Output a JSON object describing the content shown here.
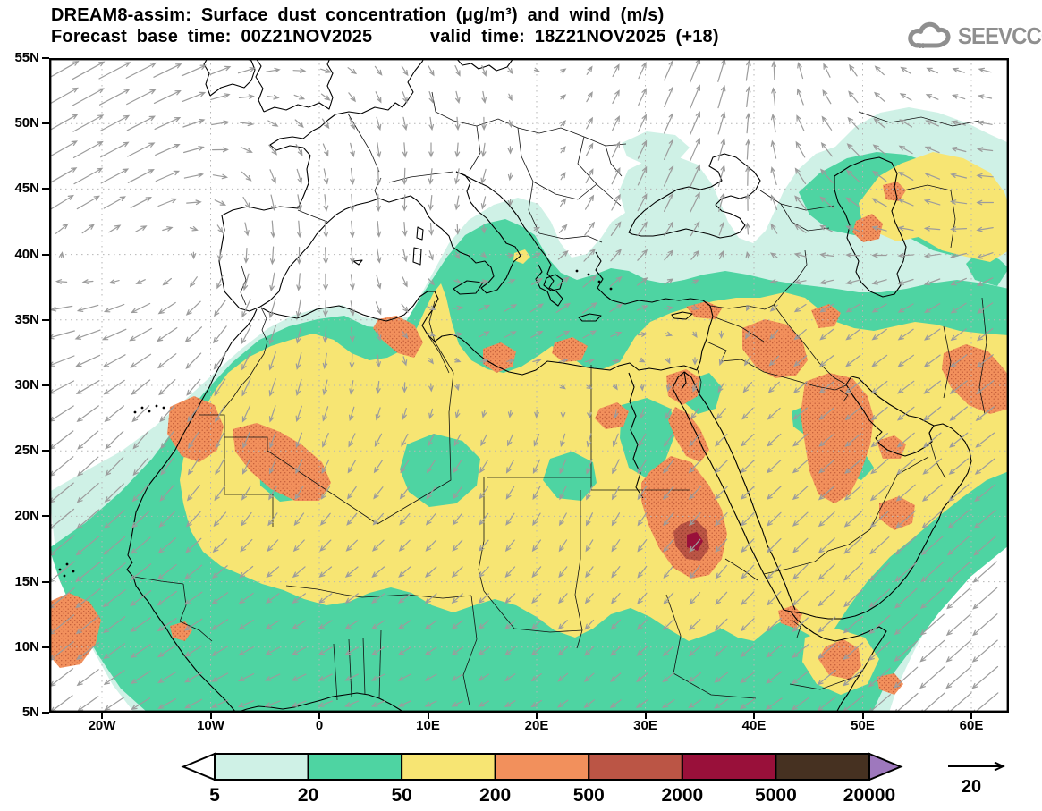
{
  "header": {
    "title_line1": "DREAM8-assim: Surface dust concentration (μg/m³) and wind (m/s)",
    "title_line2": "Forecast base time: 00Z21NOV2025      valid time: 18Z21NOV2025 (+18)",
    "logo_text": "SEEVCCC"
  },
  "axes": {
    "lat_labels": [
      "55N",
      "50N",
      "45N",
      "40N",
      "35N",
      "30N",
      "25N",
      "20N",
      "15N",
      "10N",
      "5N"
    ],
    "lon_labels": [
      "20W",
      "10W",
      "0",
      "10E",
      "20E",
      "30E",
      "40E",
      "50E",
      "60E"
    ]
  },
  "legend": {
    "tick_labels": [
      "5",
      "20",
      "50",
      "200",
      "500",
      "2000",
      "5000",
      "20000"
    ],
    "wind_reference_label": "20"
  },
  "chart_data": {
    "type": "heatmap",
    "subtype": "filled-contour-geographic-map-with-wind-vectors",
    "title": "DREAM8-assim: Surface dust concentration (μg/m³) and wind (m/s)",
    "forecast_base_time": "00Z21NOV2025",
    "valid_time": "18Z21NOV2025",
    "forecast_hour": "+18",
    "lon_range_deg": [
      -25,
      63.5
    ],
    "lat_range_deg": [
      5,
      55
    ],
    "lon_ticks": [
      "20W",
      "10W",
      "0",
      "10E",
      "20E",
      "30E",
      "40E",
      "50E",
      "60E"
    ],
    "lat_ticks": [
      "55N",
      "50N",
      "45N",
      "40N",
      "35N",
      "30N",
      "25N",
      "20N",
      "15N",
      "10N",
      "5N"
    ],
    "dust_levels_ug_m3": [
      5,
      20,
      50,
      200,
      500,
      2000,
      5000,
      20000
    ],
    "palette": {
      "below_5": "#ffffff",
      "5_20": "#cff1e6",
      "20_50": "#4ed4a2",
      "50_200": "#f7e573",
      "200_500": "#f2905c",
      "500_2000": "#bb5545",
      "2000_5000": "#99103a",
      "5000_20000": "#463121",
      "above_20000": "#9e78bd",
      "wind_arrow": "#9c9c9c",
      "grid_dots": "#b5b5b5",
      "coastline": "#000000",
      "logo_gray": "#8f8f8f"
    },
    "legend_position": "bottom",
    "grid": "dotted, 10° longitude × 5° latitude",
    "wind_units": "m/s",
    "wind_reference_speed": 20,
    "wind_grid": {
      "lons": [
        -25,
        -15,
        -5,
        5,
        15,
        25,
        35,
        45,
        55,
        65
      ],
      "lats": [
        55,
        45,
        35,
        25,
        15,
        5
      ],
      "u": [
        [
          14,
          12,
          6,
          3,
          2,
          2,
          4,
          -2,
          -4,
          -5
        ],
        [
          12,
          10,
          2,
          0,
          -2,
          3,
          4,
          -5,
          -6,
          -7
        ],
        [
          -11,
          -9,
          -3,
          2,
          5,
          6,
          2,
          -5,
          -6,
          -6
        ],
        [
          -10,
          -5,
          -2,
          -3,
          -3,
          -2,
          -5,
          -6,
          -7,
          -8
        ],
        [
          -11,
          -8,
          -5,
          -5,
          -4,
          -3,
          -4,
          -6,
          -9,
          -10
        ],
        [
          -9,
          -7,
          -6,
          -5,
          -4,
          -4,
          -5,
          -7,
          -10,
          -11
        ]
      ],
      "v": [
        [
          8,
          6,
          2,
          -3,
          -4,
          3,
          10,
          6,
          2,
          1
        ],
        [
          7,
          5,
          -6,
          -7,
          -6,
          6,
          9,
          6,
          3,
          -1
        ],
        [
          -2,
          -5,
          -8,
          -5,
          3,
          4,
          -2,
          -4,
          -4,
          -5
        ],
        [
          -8,
          -7,
          -6,
          -5,
          -5,
          -6,
          -5,
          -5,
          -6,
          -6
        ],
        [
          -9,
          -6,
          -4,
          -4,
          -4,
          -4,
          -5,
          -6,
          -8,
          -9
        ],
        [
          -7,
          -4,
          -2,
          -2,
          -2,
          -3,
          -3,
          -5,
          -9,
          -9
        ]
      ]
    },
    "features": [
      "Yellow (50–200 μg/m³) field covers the Sahara from the Atlantic coast to Arabia and Iran (≈13N–33N)",
      "Orange (200–500) maxima: Western Sahara coast, central Algeria, Libyan coast, Suez / NW Red Sea, Hejaz–Sudan, northern Saudi Arabia, eastern Saudi Arabia / Gulf, Oman, SE Iran, south Caspian shore, Horn of Africa, Atlantic plume near 10N 23W",
      "Dark red (500–5000) core over eastern Sudan near 18N 34E",
      "Teal (20–50) band along Sahel, West African coast, eastern Mediterranean, southern Turkey and Caucasus/Caspian region",
      "Pale cyan (5–20) fringe over Atlantic, Mediterranean, Black Sea margins and Arabian Sea",
      "Gray wind vectors: NE-ward N-Atlantic flow, NE trade winds toward SW off West Africa, southerly flow over Europe, northward flow over Ukraine/Black Sea, strong SW-ward monsoon-like flow over Arabian Sea"
    ]
  }
}
